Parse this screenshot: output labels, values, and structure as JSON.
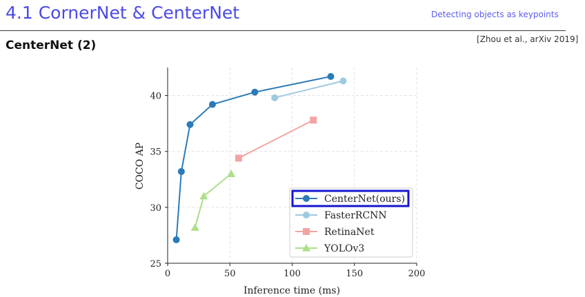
{
  "header": {
    "title": "4.1 CornerNet & CenterNet",
    "right_text": "Detecting objects as keypoints"
  },
  "slide": {
    "subtitle": "CenterNet (2)",
    "citation": "[Zhou et al., arXiv 2019]"
  },
  "chart_data": {
    "type": "line",
    "title": "",
    "xlabel": "Inference time (ms)",
    "ylabel": "COCO AP",
    "xlim": [
      0,
      200
    ],
    "ylim": [
      25,
      42.5
    ],
    "xticks": [
      0,
      50,
      100,
      150,
      200
    ],
    "yticks": [
      25,
      30,
      35,
      40
    ],
    "grid": true,
    "legend_position": "bottom-right",
    "highlighted_legend_entry": "CenterNet(ours)",
    "series": [
      {
        "name": "CenterNet(ours)",
        "marker": "circle",
        "color": "#2b7bb9",
        "x": [
          7,
          11,
          18,
          36,
          70,
          131
        ],
        "y": [
          27.1,
          33.2,
          37.4,
          39.2,
          40.3,
          41.7
        ]
      },
      {
        "name": "FasterRCNN",
        "marker": "circle",
        "color": "#9ecae1",
        "x": [
          86,
          141
        ],
        "y": [
          39.8,
          41.3
        ]
      },
      {
        "name": "RetinaNet",
        "marker": "square",
        "color": "#f4a3a3",
        "x": [
          57,
          117
        ],
        "y": [
          34.4,
          37.8
        ]
      },
      {
        "name": "YOLOv3",
        "marker": "triangle",
        "color": "#addf8a",
        "x": [
          22,
          29,
          51
        ],
        "y": [
          28.2,
          31.0,
          33.0
        ]
      }
    ]
  }
}
